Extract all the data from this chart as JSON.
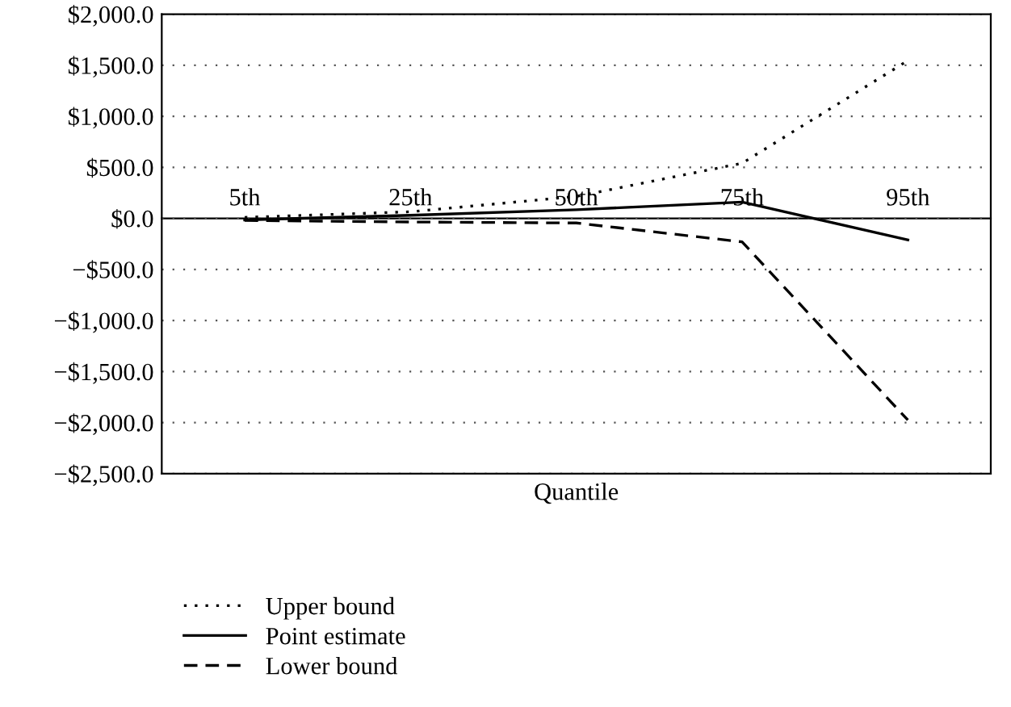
{
  "chart_data": {
    "type": "line",
    "xlabel": "Quantile",
    "categories": [
      "5th",
      "25th",
      "50th",
      "75th",
      "95th"
    ],
    "series": [
      {
        "name": "Upper bound",
        "color": "#000000",
        "line_style": "dotted",
        "values": [
          10,
          65,
          215,
          540,
          1545
        ]
      },
      {
        "name": "Point estimate",
        "color": "#000000",
        "line_style": "solid",
        "values": [
          -15,
          30,
          85,
          160,
          -210
        ]
      },
      {
        "name": "Lower bound",
        "color": "#000000",
        "line_style": "dashed",
        "values": [
          -20,
          -35,
          -45,
          -230,
          -1975
        ]
      }
    ],
    "ylim": [
      -2500,
      2000
    ],
    "yticks": [
      {
        "value": -2500,
        "label": "−$2,500.0"
      },
      {
        "value": -2000,
        "label": "−$2,000.0"
      },
      {
        "value": -1500,
        "label": "−$1,500.0"
      },
      {
        "value": -1000,
        "label": "−$1,000.0"
      },
      {
        "value": -500,
        "label": "−$500.0"
      },
      {
        "value": 0,
        "label": "$0.0"
      },
      {
        "value": 500,
        "label": "$500.0"
      },
      {
        "value": 1000,
        "label": "$1,000.0"
      },
      {
        "value": 1500,
        "label": "$1,500.0"
      },
      {
        "value": 2000,
        "label": "$2,000.0"
      }
    ],
    "grid": "y",
    "legend": "bottom left",
    "marker": "none"
  }
}
